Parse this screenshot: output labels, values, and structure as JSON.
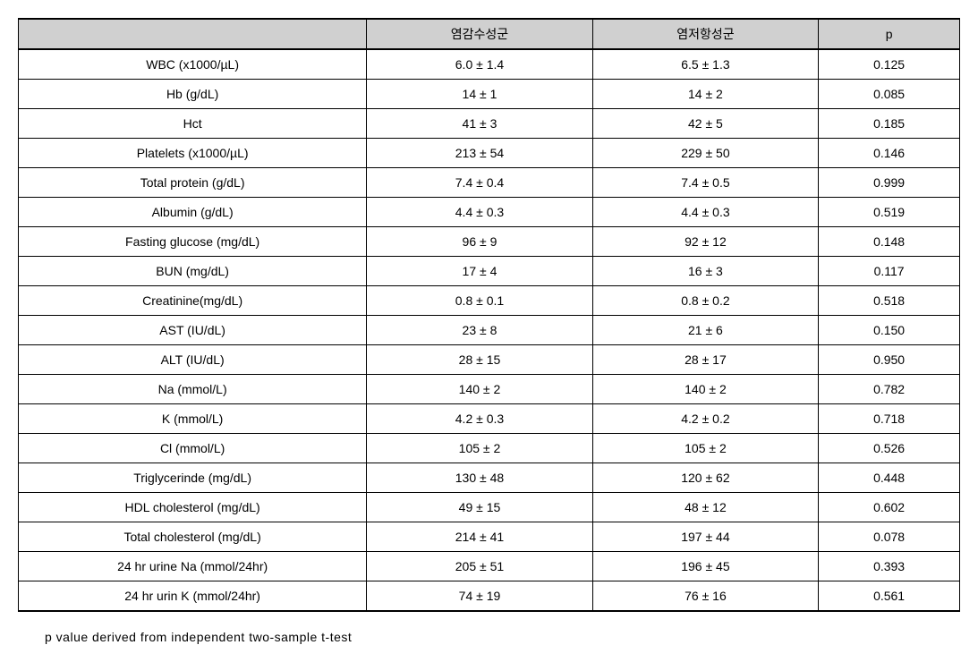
{
  "table": {
    "type": "table",
    "background_color": "#ffffff",
    "header_background": "#d0d0d0",
    "border_color": "#000000",
    "font_size": 14,
    "columns": [
      {
        "key": "param",
        "label": "",
        "width": "37%"
      },
      {
        "key": "group1",
        "label": "염감수성군",
        "width": "24%"
      },
      {
        "key": "group2",
        "label": "염저항성군",
        "width": "24%"
      },
      {
        "key": "p",
        "label": "p",
        "width": "15%"
      }
    ],
    "rows": [
      {
        "param": "WBC (x1000/µL)",
        "group1": "6.0 ± 1.4",
        "group2": "6.5 ± 1.3",
        "p": "0.125"
      },
      {
        "param": "Hb (g/dL)",
        "group1": "14 ± 1",
        "group2": "14 ± 2",
        "p": "0.085"
      },
      {
        "param": "Hct",
        "group1": "41 ± 3",
        "group2": "42 ± 5",
        "p": "0.185"
      },
      {
        "param": "Platelets (x1000/µL)",
        "group1": "213 ± 54",
        "group2": "229 ± 50",
        "p": "0.146"
      },
      {
        "param": "Total protein (g/dL)",
        "group1": "7.4 ± 0.4",
        "group2": "7.4 ± 0.5",
        "p": "0.999"
      },
      {
        "param": "Albumin (g/dL)",
        "group1": "4.4 ± 0.3",
        "group2": "4.4 ± 0.3",
        "p": "0.519"
      },
      {
        "param": "Fasting glucose (mg/dL)",
        "group1": "96 ± 9",
        "group2": "92 ± 12",
        "p": "0.148"
      },
      {
        "param": "BUN (mg/dL)",
        "group1": "17 ± 4",
        "group2": "16 ± 3",
        "p": "0.117"
      },
      {
        "param": "Creatinine(mg/dL)",
        "group1": "0.8 ± 0.1",
        "group2": "0.8 ± 0.2",
        "p": "0.518"
      },
      {
        "param": "AST (IU/dL)",
        "group1": "23 ± 8",
        "group2": "21 ± 6",
        "p": "0.150"
      },
      {
        "param": "ALT (IU/dL)",
        "group1": "28 ± 15",
        "group2": "28 ± 17",
        "p": "0.950"
      },
      {
        "param": "Na (mmol/L)",
        "group1": "140 ± 2",
        "group2": "140 ± 2",
        "p": "0.782"
      },
      {
        "param": "K (mmol/L)",
        "group1": "4.2 ± 0.3",
        "group2": "4.2 ± 0.2",
        "p": "0.718"
      },
      {
        "param": "Cl (mmol/L)",
        "group1": "105 ± 2",
        "group2": "105 ± 2",
        "p": "0.526"
      },
      {
        "param": "Triglycerinde (mg/dL)",
        "group1": "130 ± 48",
        "group2": "120 ± 62",
        "p": "0.448"
      },
      {
        "param": "HDL cholesterol (mg/dL)",
        "group1": "49 ± 15",
        "group2": "48 ± 12",
        "p": "0.602"
      },
      {
        "param": "Total cholesterol (mg/dL)",
        "group1": "214 ± 41",
        "group2": "197 ± 44",
        "p": "0.078"
      },
      {
        "param": "24 hr urine Na (mmol/24hr)",
        "group1": "205 ± 51",
        "group2": "196 ± 45",
        "p": "0.393"
      },
      {
        "param": "24 hr urin K (mmol/24hr)",
        "group1": "74 ± 19",
        "group2": "76 ± 16",
        "p": "0.561"
      }
    ]
  },
  "footnote": "p value derived from independent two-sample t-test"
}
